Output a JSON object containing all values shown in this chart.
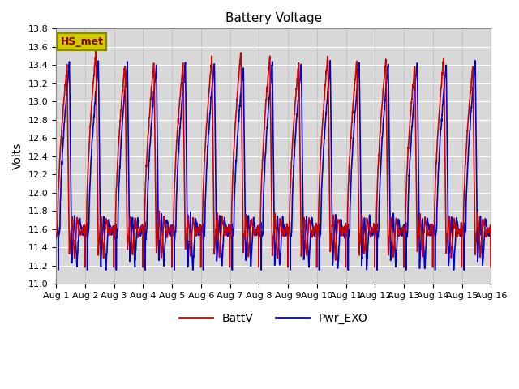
{
  "title": "Battery Voltage",
  "ylabel": "Volts",
  "xlabel": "",
  "ylim": [
    11.0,
    13.8
  ],
  "yticks": [
    11.0,
    11.2,
    11.4,
    11.6,
    11.8,
    12.0,
    12.2,
    12.4,
    12.6,
    12.8,
    13.0,
    13.2,
    13.4,
    13.6,
    13.8
  ],
  "line1_color": "#cc0000",
  "line2_color": "#0000cc",
  "line1_label": "BattV",
  "line2_label": "Pwr_EXO",
  "station_label": "HS_met",
  "station_label_bg": "#cccc00",
  "station_label_border": "#888800",
  "plot_bg": "#d8d8d8",
  "fig_bg": "#ffffff",
  "grid_color": "#ffffff",
  "linewidth": 1.2,
  "num_days": 15,
  "peak_voltage": 13.42,
  "min_voltage_red": 11.33,
  "min_voltage_blue": 11.2
}
